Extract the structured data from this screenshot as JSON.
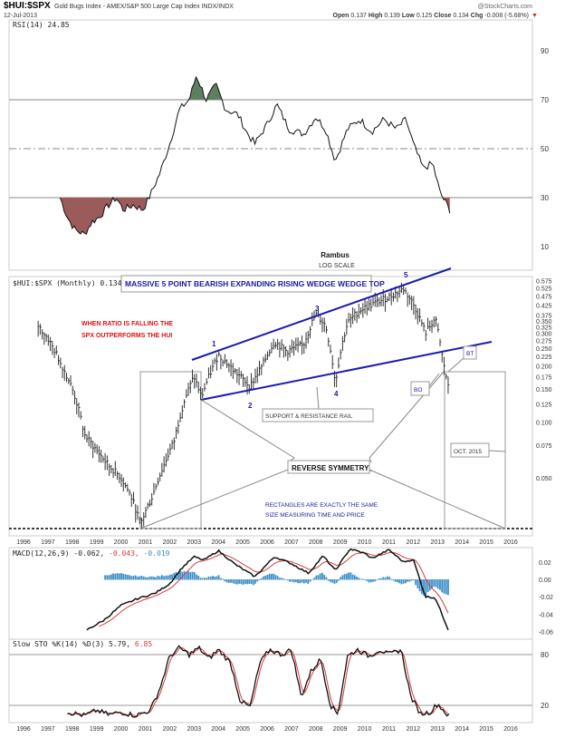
{
  "header": {
    "symbol": "$HUI:$SPX",
    "description": "Gold Bugs Index - AMEX/S&P 500 Large Cap Index INDX/INDX",
    "date": "12-Jul-2013",
    "brand": "@StockCharts.com",
    "open_label": "Open",
    "open": "0.137",
    "high_label": "High",
    "high": "0.139",
    "low_label": "Low",
    "low": "0.125",
    "close_label": "Close",
    "close": "0.134",
    "chg_label": "Chg",
    "chg": "-0.008 (-5.68%)",
    "down_arrow": "▼"
  },
  "colors": {
    "line": "#111111",
    "signal": "#d43c3c",
    "hist": "#3d8ec9",
    "overbought": "#5e7f5e",
    "oversold": "#9c5b5b",
    "annotation_blue": "#1a1aa6",
    "annotation_red": "#dd1111",
    "trendline": "#1c1cb0"
  },
  "chart_data": [
    {
      "type": "line",
      "panel": "rsi",
      "legend": "RSI(14) 24.85",
      "ylim": [
        0,
        100
      ],
      "ticks": [
        "90",
        "70",
        "50",
        "30",
        "10"
      ],
      "tick_values": [
        90,
        70,
        50,
        30,
        10
      ],
      "points": [
        [
          1997.5,
          30
        ],
        [
          1997.8,
          22
        ],
        [
          1998.1,
          17
        ],
        [
          1998.5,
          15
        ],
        [
          1998.8,
          20
        ],
        [
          1999.1,
          22
        ],
        [
          1999.5,
          27
        ],
        [
          1999.8,
          30
        ],
        [
          2000.1,
          25
        ],
        [
          2000.5,
          27
        ],
        [
          2000.9,
          25
        ],
        [
          2001.2,
          31
        ],
        [
          2001.6,
          40
        ],
        [
          2002.0,
          52
        ],
        [
          2002.4,
          66
        ],
        [
          2002.8,
          70
        ],
        [
          2003.1,
          80
        ],
        [
          2003.5,
          70
        ],
        [
          2003.9,
          76
        ],
        [
          2004.3,
          66
        ],
        [
          2004.8,
          64
        ],
        [
          2005.2,
          56
        ],
        [
          2005.5,
          52
        ],
        [
          2006.0,
          60
        ],
        [
          2006.4,
          68
        ],
        [
          2006.9,
          58
        ],
        [
          2007.5,
          56
        ],
        [
          2008.0,
          63
        ],
        [
          2008.4,
          58
        ],
        [
          2008.8,
          45
        ],
        [
          2009.3,
          58
        ],
        [
          2009.8,
          62
        ],
        [
          2010.3,
          57
        ],
        [
          2010.8,
          62
        ],
        [
          2011.3,
          58
        ],
        [
          2011.7,
          62
        ],
        [
          2012.0,
          52
        ],
        [
          2012.4,
          42
        ],
        [
          2012.8,
          44
        ],
        [
          2013.1,
          32
        ],
        [
          2013.5,
          25
        ]
      ]
    },
    {
      "type": "ohlc",
      "panel": "price",
      "legend": "$HUI:$SPX (Monthly) 0.134",
      "scale": "log",
      "ylim": [
        0.03,
        0.6
      ],
      "ticks": [
        "0.575",
        "0.525",
        "0.475",
        "0.425",
        "0.375",
        "0.350",
        "0.325",
        "0.300",
        "0.275",
        "0.250",
        "0.225",
        "0.200",
        "0.175",
        "0.150",
        "0.125",
        "0.100",
        "0.075",
        "0.050"
      ],
      "tick_values": [
        0.575,
        0.525,
        0.475,
        0.425,
        0.375,
        0.35,
        0.325,
        0.3,
        0.275,
        0.25,
        0.225,
        0.2,
        0.175,
        0.15,
        0.125,
        0.1,
        0.075,
        0.05
      ],
      "points": [
        [
          1996.6,
          0.33
        ],
        [
          1997.0,
          0.28
        ],
        [
          1997.5,
          0.21
        ],
        [
          1998.0,
          0.15
        ],
        [
          1998.5,
          0.085
        ],
        [
          1999.0,
          0.07
        ],
        [
          1999.5,
          0.058
        ],
        [
          2000.0,
          0.05
        ],
        [
          2000.4,
          0.04
        ],
        [
          2000.8,
          0.028
        ],
        [
          2001.3,
          0.04
        ],
        [
          2001.8,
          0.06
        ],
        [
          2002.2,
          0.08
        ],
        [
          2002.6,
          0.13
        ],
        [
          2003.0,
          0.175
        ],
        [
          2003.3,
          0.135
        ],
        [
          2003.8,
          0.2
        ],
        [
          2004.0,
          0.23
        ],
        [
          2004.6,
          0.19
        ],
        [
          2005.3,
          0.155
        ],
        [
          2005.8,
          0.2
        ],
        [
          2006.3,
          0.27
        ],
        [
          2006.8,
          0.24
        ],
        [
          2007.5,
          0.26
        ],
        [
          2008.0,
          0.38
        ],
        [
          2008.4,
          0.33
        ],
        [
          2008.8,
          0.16
        ],
        [
          2009.3,
          0.34
        ],
        [
          2009.8,
          0.4
        ],
        [
          2010.5,
          0.44
        ],
        [
          2011.0,
          0.47
        ],
        [
          2011.6,
          0.52
        ],
        [
          2012.0,
          0.43
        ],
        [
          2012.5,
          0.3
        ],
        [
          2012.9,
          0.36
        ],
        [
          2013.2,
          0.22
        ],
        [
          2013.5,
          0.134
        ]
      ]
    },
    {
      "type": "line",
      "panel": "macd",
      "legend": "MACD(12,26,9)",
      "legend_macd": "-0.062,",
      "legend_signal": "-0.043,",
      "legend_hist": "-0.019",
      "ticks": [
        "0.02",
        "0.00",
        "-0.02",
        "-0.04",
        "-0.06"
      ],
      "tick_values": [
        0.02,
        0,
        -0.02,
        -0.04,
        -0.06
      ],
      "points": [
        [
          1998.6,
          -0.058
        ],
        [
          1999.3,
          -0.047
        ],
        [
          2000.0,
          -0.03
        ],
        [
          2000.7,
          -0.022
        ],
        [
          2001.4,
          -0.016
        ],
        [
          2002.0,
          -0.005
        ],
        [
          2002.5,
          0.013
        ],
        [
          2003.0,
          0.026
        ],
        [
          2003.4,
          0.022
        ],
        [
          2004.0,
          0.033
        ],
        [
          2004.7,
          0.017
        ],
        [
          2005.5,
          0.003
        ],
        [
          2006.3,
          0.026
        ],
        [
          2007.0,
          0.018
        ],
        [
          2007.7,
          0.007
        ],
        [
          2008.3,
          0.027
        ],
        [
          2008.8,
          0.01
        ],
        [
          2009.4,
          0.035
        ],
        [
          2010.0,
          0.03
        ],
        [
          2010.3,
          0.024
        ],
        [
          2011.0,
          0.034
        ],
        [
          2011.6,
          0.02
        ],
        [
          2012.0,
          0.023
        ],
        [
          2012.5,
          -0.02
        ],
        [
          2012.9,
          -0.021
        ],
        [
          2013.5,
          -0.062
        ]
      ]
    },
    {
      "type": "line",
      "panel": "stochastic",
      "legend": "Slow STO %K(14) %D(3)",
      "legend_k": "5.79,",
      "legend_d": "6.85",
      "ticks": [
        "80",
        "20"
      ],
      "tick_values": [
        80,
        20
      ],
      "points": [
        [
          1997.8,
          12
        ],
        [
          1998.5,
          8
        ],
        [
          1999.0,
          14
        ],
        [
          1999.5,
          9
        ],
        [
          2000.0,
          12
        ],
        [
          2000.6,
          8
        ],
        [
          2001.2,
          14
        ],
        [
          2001.6,
          40
        ],
        [
          2002.0,
          78
        ],
        [
          2002.4,
          88
        ],
        [
          2002.8,
          80
        ],
        [
          2003.2,
          88
        ],
        [
          2003.6,
          75
        ],
        [
          2004.0,
          86
        ],
        [
          2004.5,
          70
        ],
        [
          2004.9,
          25
        ],
        [
          2005.3,
          18
        ],
        [
          2005.7,
          70
        ],
        [
          2006.1,
          86
        ],
        [
          2006.6,
          80
        ],
        [
          2007.0,
          86
        ],
        [
          2007.4,
          30
        ],
        [
          2007.8,
          60
        ],
        [
          2008.2,
          75
        ],
        [
          2008.6,
          20
        ],
        [
          2008.9,
          10
        ],
        [
          2009.3,
          78
        ],
        [
          2009.7,
          86
        ],
        [
          2010.2,
          78
        ],
        [
          2010.6,
          86
        ],
        [
          2011.0,
          80
        ],
        [
          2011.5,
          86
        ],
        [
          2011.9,
          30
        ],
        [
          2012.3,
          10
        ],
        [
          2012.7,
          12
        ],
        [
          2013.0,
          22
        ],
        [
          2013.3,
          12
        ],
        [
          2013.5,
          6
        ]
      ]
    }
  ],
  "x_axis": {
    "years": [
      "1996",
      "1997",
      "1998",
      "1999",
      "2000",
      "2001",
      "2002",
      "2003",
      "2004",
      "2005",
      "2006",
      "2007",
      "2008",
      "2009",
      "2010",
      "2011",
      "2012",
      "2013",
      "2014",
      "2015",
      "2016"
    ]
  },
  "annotations": {
    "rambus": "Rambus",
    "log_scale": "LOG SCALE",
    "title_box": "MASSIVE 5 POINT BEARISH EXPANDING RISING WEDGE WEDGE TOP",
    "red_line1": "WHEN RATIO IS FALLING THE",
    "red_line2": "SPX  OUTPERFORMS THE HUI",
    "points": [
      "1",
      "2",
      "3",
      "4",
      "5"
    ],
    "support_rail": "SUPPORT & RESISTANCE RAIL",
    "reverse_symmetry": "REVERSE SYMMETRY",
    "rect_line1": "RECTANGLES ARE EXACTLY THE SAME",
    "rect_line2": "SIZE MEASURING TIME AND PRICE",
    "bt": "BT",
    "bo": "BO",
    "oct": "OCT. 2015"
  }
}
